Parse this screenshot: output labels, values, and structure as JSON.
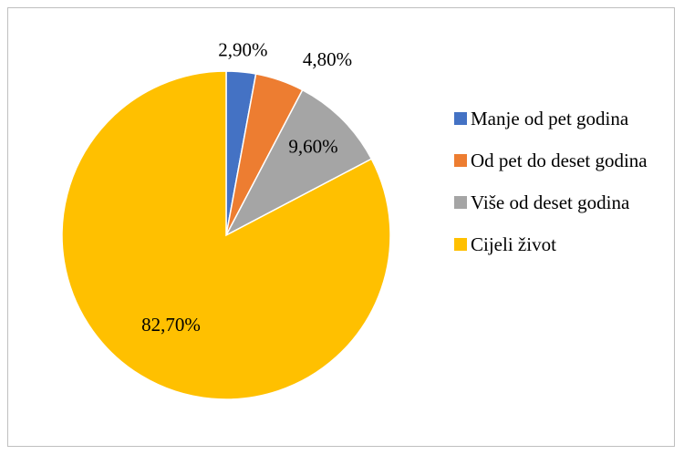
{
  "chart_data": {
    "type": "pie",
    "categories": [
      "Manje od pet godina",
      "Od pet do deset godina",
      "Više od deset godina",
      "Cijeli život"
    ],
    "values": [
      2.9,
      4.8,
      9.6,
      82.7
    ],
    "value_labels": [
      "2,90%",
      "4,80%",
      "9,60%",
      "82,70%"
    ],
    "colors": [
      "#4472c4",
      "#ed7d31",
      "#a5a5a5",
      "#ffc000"
    ],
    "legend": "right"
  }
}
